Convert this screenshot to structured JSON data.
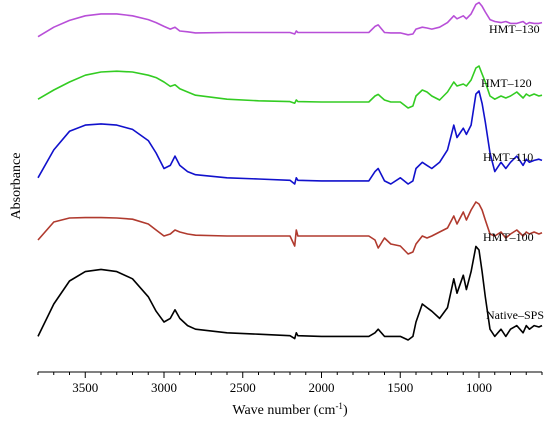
{
  "chart_data": {
    "type": "line",
    "xlabel": "Wave number (cm",
    "xlabel_sup": "-1",
    "xlabel_end": ")",
    "ylabel": "Absorbance",
    "xlim": [
      3800,
      600
    ],
    "x_ticks": [
      3500,
      3000,
      2500,
      2000,
      1500,
      1000
    ],
    "grid": false,
    "legend": "inline labels at right",
    "series": [
      {
        "name": "HMT–130",
        "color": "#b84fd8",
        "baseline": 0.05,
        "scale": 1.1,
        "x": [
          3800,
          3700,
          3600,
          3500,
          3400,
          3300,
          3200,
          3100,
          3050,
          3000,
          2960,
          2930,
          2900,
          2850,
          2800,
          2600,
          2400,
          2200,
          2170,
          2160,
          2150,
          2000,
          1800,
          1700,
          1660,
          1640,
          1600,
          1560,
          1500,
          1450,
          1420,
          1400,
          1360,
          1330,
          1300,
          1250,
          1200,
          1160,
          1140,
          1100,
          1080,
          1050,
          1020,
          1000,
          980,
          960,
          930,
          900,
          860,
          830,
          800,
          760,
          720,
          700,
          680,
          650,
          620,
          600
        ],
        "y": [
          0.35,
          0.6,
          0.78,
          0.9,
          0.95,
          0.95,
          0.9,
          0.8,
          0.72,
          0.62,
          0.55,
          0.6,
          0.5,
          0.48,
          0.45,
          0.46,
          0.46,
          0.46,
          0.42,
          0.5,
          0.46,
          0.46,
          0.46,
          0.46,
          0.62,
          0.66,
          0.46,
          0.45,
          0.45,
          0.4,
          0.42,
          0.55,
          0.6,
          0.58,
          0.55,
          0.6,
          0.72,
          0.9,
          0.82,
          0.9,
          0.82,
          0.95,
          1.2,
          1.25,
          1.15,
          1.0,
          0.8,
          0.75,
          0.72,
          0.75,
          0.7,
          0.7,
          0.75,
          0.68,
          0.72,
          0.7,
          0.7,
          0.72
        ]
      },
      {
        "name": "HMT–120",
        "color": "#33cc22",
        "baseline": 0.05,
        "scale": 1.1,
        "x": [
          3800,
          3700,
          3600,
          3500,
          3400,
          3300,
          3200,
          3100,
          3050,
          3000,
          2960,
          2930,
          2900,
          2850,
          2800,
          2600,
          2400,
          2200,
          2170,
          2160,
          2150,
          2000,
          1800,
          1700,
          1660,
          1640,
          1600,
          1560,
          1500,
          1450,
          1420,
          1400,
          1360,
          1330,
          1300,
          1250,
          1200,
          1160,
          1140,
          1100,
          1080,
          1050,
          1020,
          1000,
          980,
          960,
          930,
          900,
          860,
          830,
          800,
          760,
          720,
          700,
          680,
          650,
          620,
          600
        ],
        "y": [
          0.12,
          0.35,
          0.55,
          0.72,
          0.8,
          0.82,
          0.8,
          0.72,
          0.66,
          0.55,
          0.44,
          0.48,
          0.38,
          0.3,
          0.22,
          0.12,
          0.08,
          0.06,
          0.02,
          0.1,
          0.06,
          0.05,
          0.05,
          0.05,
          0.2,
          0.24,
          0.1,
          0.05,
          0.05,
          -0.1,
          -0.05,
          0.2,
          0.35,
          0.3,
          0.2,
          0.1,
          0.3,
          0.55,
          0.45,
          0.5,
          0.45,
          0.6,
          0.9,
          0.95,
          0.75,
          0.55,
          0.2,
          0.12,
          0.2,
          0.15,
          0.2,
          0.3,
          0.15,
          0.25,
          0.2,
          0.25,
          0.2,
          0.22
        ]
      },
      {
        "name": "HMT–110",
        "color": "#1111cc",
        "baseline": 0.05,
        "scale": 1.1,
        "x": [
          3800,
          3700,
          3600,
          3500,
          3400,
          3300,
          3200,
          3100,
          3050,
          3000,
          2960,
          2930,
          2900,
          2850,
          2800,
          2600,
          2400,
          2200,
          2170,
          2160,
          2150,
          2000,
          1800,
          1700,
          1660,
          1640,
          1600,
          1560,
          1500,
          1450,
          1420,
          1400,
          1360,
          1330,
          1300,
          1250,
          1200,
          1160,
          1140,
          1100,
          1080,
          1050,
          1020,
          1000,
          980,
          960,
          930,
          900,
          860,
          830,
          800,
          760,
          720,
          700,
          680,
          650,
          620,
          600
        ],
        "y": [
          0.1,
          0.55,
          0.85,
          0.95,
          0.97,
          0.95,
          0.88,
          0.7,
          0.5,
          0.25,
          0.3,
          0.45,
          0.3,
          0.2,
          0.15,
          0.1,
          0.08,
          0.06,
          0.0,
          0.1,
          0.06,
          0.05,
          0.05,
          0.05,
          0.2,
          0.25,
          0.05,
          0.0,
          0.1,
          0.0,
          0.05,
          0.25,
          0.35,
          0.3,
          0.25,
          0.35,
          0.55,
          0.95,
          0.75,
          0.9,
          0.8,
          0.95,
          1.45,
          1.5,
          1.3,
          1.0,
          0.5,
          0.2,
          0.35,
          0.25,
          0.35,
          0.45,
          0.3,
          0.4,
          0.35,
          0.38,
          0.4,
          0.38
        ]
      },
      {
        "name": "HMT–100",
        "color": "#b03a2e",
        "baseline": 0.05,
        "scale": 1.1,
        "x": [
          3800,
          3700,
          3600,
          3500,
          3400,
          3300,
          3200,
          3100,
          3050,
          3000,
          2960,
          2930,
          2900,
          2850,
          2800,
          2600,
          2400,
          2200,
          2170,
          2160,
          2150,
          2000,
          1800,
          1700,
          1660,
          1640,
          1600,
          1560,
          1500,
          1450,
          1420,
          1400,
          1360,
          1330,
          1300,
          1250,
          1200,
          1160,
          1140,
          1100,
          1080,
          1050,
          1020,
          1000,
          980,
          960,
          930,
          900,
          860,
          830,
          800,
          760,
          720,
          700,
          680,
          650,
          620,
          600
        ],
        "y": [
          0.1,
          0.55,
          0.65,
          0.66,
          0.66,
          0.65,
          0.62,
          0.5,
          0.35,
          0.2,
          0.25,
          0.35,
          0.3,
          0.25,
          0.22,
          0.2,
          0.2,
          0.2,
          -0.05,
          0.35,
          0.2,
          0.2,
          0.2,
          0.2,
          0.1,
          -0.1,
          0.15,
          0.0,
          -0.05,
          -0.25,
          -0.2,
          0.0,
          0.2,
          0.15,
          0.2,
          0.3,
          0.4,
          0.7,
          0.5,
          0.8,
          0.6,
          0.85,
          1.05,
          1.0,
          0.85,
          0.6,
          0.25,
          0.2,
          0.3,
          0.15,
          0.25,
          0.35,
          0.2,
          0.3,
          0.25,
          0.3,
          0.25,
          0.28
        ]
      },
      {
        "name": "Native–SPS",
        "color": "#000000",
        "baseline": 0.05,
        "scale": 1.1,
        "x": [
          3800,
          3700,
          3600,
          3500,
          3400,
          3300,
          3200,
          3100,
          3050,
          3000,
          2960,
          2930,
          2900,
          2850,
          2800,
          2600,
          2400,
          2200,
          2170,
          2160,
          2150,
          2000,
          1800,
          1700,
          1660,
          1640,
          1600,
          1560,
          1500,
          1450,
          1420,
          1400,
          1360,
          1330,
          1300,
          1250,
          1200,
          1160,
          1140,
          1100,
          1080,
          1050,
          1020,
          1000,
          980,
          960,
          930,
          900,
          860,
          830,
          800,
          760,
          720,
          700,
          680,
          650,
          620,
          600
        ],
        "y": [
          0.05,
          0.5,
          0.82,
          0.95,
          0.98,
          0.95,
          0.85,
          0.6,
          0.4,
          0.25,
          0.3,
          0.42,
          0.3,
          0.2,
          0.15,
          0.1,
          0.08,
          0.06,
          0.02,
          0.1,
          0.06,
          0.05,
          0.05,
          0.05,
          0.1,
          0.15,
          0.05,
          0.05,
          0.05,
          0.0,
          0.05,
          0.25,
          0.5,
          0.45,
          0.4,
          0.3,
          0.45,
          0.85,
          0.65,
          0.9,
          0.7,
          0.95,
          1.3,
          1.25,
          0.95,
          0.6,
          0.15,
          0.05,
          0.15,
          0.05,
          0.15,
          0.2,
          0.1,
          0.2,
          0.15,
          0.2,
          0.18,
          0.2
        ]
      }
    ]
  }
}
